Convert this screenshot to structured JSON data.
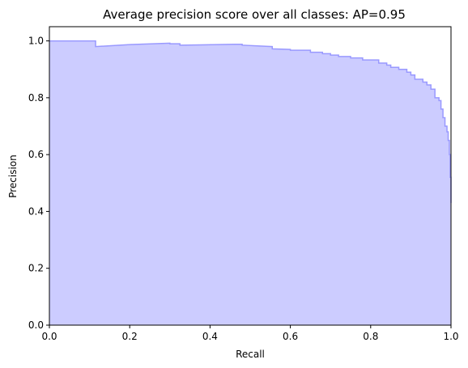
{
  "chart_data": {
    "type": "area",
    "title": "Average precision score over all classes: AP=0.95",
    "xlabel": "Recall",
    "ylabel": "Precision",
    "xlim": [
      0.0,
      1.0
    ],
    "ylim": [
      0.0,
      1.05
    ],
    "xticks": [
      "0.0",
      "0.2",
      "0.4",
      "0.6",
      "0.8",
      "1.0"
    ],
    "yticks": [
      "0.0",
      "0.2",
      "0.4",
      "0.6",
      "0.8",
      "1.0"
    ],
    "grid": false,
    "step": "post",
    "fill_color": "#ccccff",
    "line_color": "#9999ff",
    "series": [
      {
        "x": [
          0.0,
          0.115,
          0.115,
          0.2,
          0.3,
          0.3,
          0.325,
          0.325,
          0.46,
          0.48,
          0.48,
          0.555,
          0.555,
          0.6,
          0.6,
          0.65,
          0.65,
          0.68,
          0.68,
          0.7,
          0.7,
          0.72,
          0.72,
          0.75,
          0.75,
          0.78,
          0.78,
          0.82,
          0.82,
          0.84,
          0.84,
          0.85,
          0.85,
          0.87,
          0.87,
          0.89,
          0.89,
          0.9,
          0.9,
          0.91,
          0.91,
          0.93,
          0.93,
          0.94,
          0.94,
          0.95,
          0.95,
          0.96,
          0.96,
          0.97,
          0.97,
          0.975,
          0.975,
          0.98,
          0.98,
          0.985,
          0.985,
          0.99,
          0.99,
          0.993,
          0.993,
          0.996,
          0.996,
          0.998,
          0.998,
          1.0,
          1.0
        ],
        "y": [
          1.0,
          1.0,
          0.98,
          0.987,
          0.992,
          0.99,
          0.99,
          0.985,
          0.988,
          0.988,
          0.985,
          0.98,
          0.972,
          0.97,
          0.967,
          0.967,
          0.96,
          0.96,
          0.955,
          0.955,
          0.95,
          0.95,
          0.945,
          0.945,
          0.94,
          0.94,
          0.933,
          0.933,
          0.922,
          0.922,
          0.915,
          0.915,
          0.907,
          0.907,
          0.9,
          0.9,
          0.89,
          0.89,
          0.88,
          0.88,
          0.865,
          0.865,
          0.855,
          0.855,
          0.845,
          0.845,
          0.83,
          0.83,
          0.8,
          0.8,
          0.79,
          0.79,
          0.76,
          0.76,
          0.73,
          0.73,
          0.7,
          0.7,
          0.68,
          0.68,
          0.65,
          0.65,
          0.6,
          0.6,
          0.52,
          0.52,
          0.43
        ]
      }
    ]
  }
}
